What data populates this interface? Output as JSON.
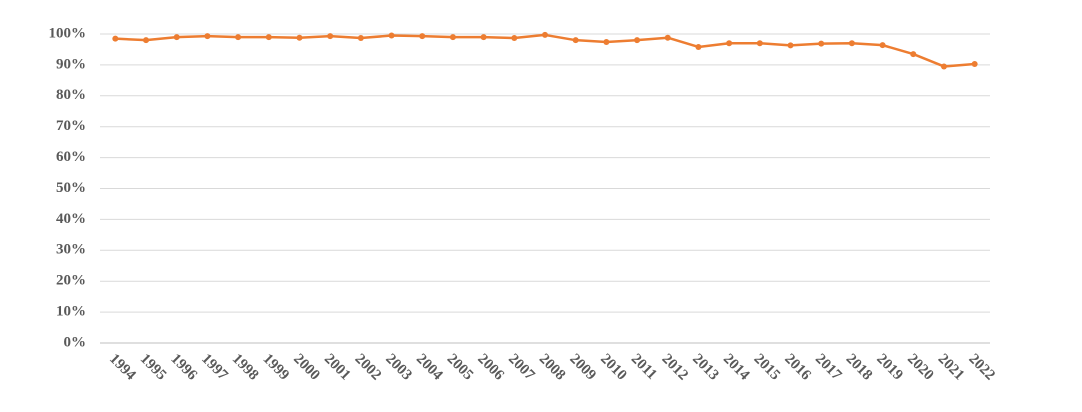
{
  "chart_data": {
    "type": "line",
    "categories": [
      "1994",
      "1995",
      "1996",
      "1997",
      "1998",
      "1999",
      "2000",
      "2001",
      "2002",
      "2003",
      "2004",
      "2005",
      "2006",
      "2007",
      "2008",
      "2009",
      "2010",
      "2011",
      "2012",
      "2013",
      "2014",
      "2015",
      "2016",
      "2017",
      "2018",
      "2019",
      "2020",
      "2021",
      "2022"
    ],
    "series": [
      {
        "color": "#ed7d31",
        "values": [
          98.5,
          98,
          99,
          99.3,
          99,
          99,
          98.8,
          99.3,
          98.7,
          99.5,
          99.3,
          99,
          99,
          98.7,
          99.7,
          98,
          97.4,
          98,
          98.8,
          95.8,
          97,
          97,
          96.3,
          96.9,
          97,
          96.4,
          93.5,
          89.5,
          90.3
        ]
      }
    ],
    "ylim": [
      0,
      100
    ],
    "yticks": [
      {
        "value": 0,
        "label": "0%"
      },
      {
        "value": 10,
        "label": "10%"
      },
      {
        "value": 20,
        "label": "20%"
      },
      {
        "value": 30,
        "label": "30%"
      },
      {
        "value": 40,
        "label": "40%"
      },
      {
        "value": 50,
        "label": "50%"
      },
      {
        "value": 60,
        "label": "60%"
      },
      {
        "value": 70,
        "label": "70%"
      },
      {
        "value": 80,
        "label": "80%"
      },
      {
        "value": 90,
        "label": "90%"
      },
      {
        "value": 100,
        "label": "100%"
      }
    ],
    "grid": true
  }
}
